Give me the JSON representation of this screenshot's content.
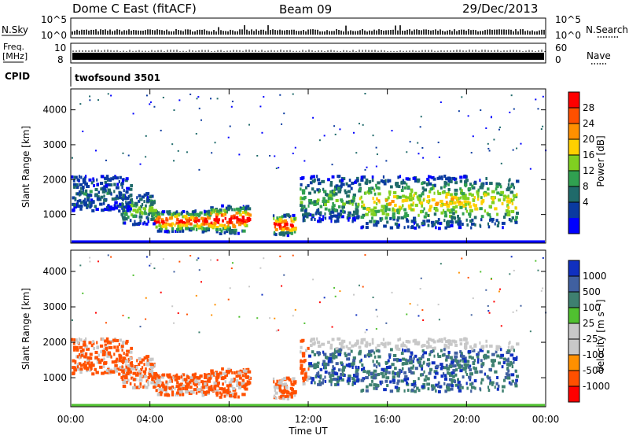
{
  "header": {
    "site": "Dome C East (fitACF)",
    "beam": "Beam 09",
    "date": "29/Dec/2013"
  },
  "strips": {
    "nsky_label": "N.Sky",
    "nsky_ticks": [
      "10^5",
      "10^0"
    ],
    "nsearch_label": "N.Search",
    "nsearch_ticks": [
      "10^5",
      "10^0"
    ],
    "freq_label_1": "Freq.",
    "freq_label_2": "[MHz]",
    "freq_ticks": [
      "10",
      "8"
    ],
    "nave_label": "Nave",
    "nave_ticks": [
      "60",
      "0"
    ],
    "cpid_label": "CPID",
    "cpid_value": "twofsound 3501"
  },
  "chart_data": [
    {
      "type": "heatmap",
      "ylabel": "Slant Range [km]",
      "yticks": [
        "4000",
        "3000",
        "2000",
        "1000"
      ],
      "yvalues": [
        4000,
        3000,
        2000,
        1000
      ],
      "ylim": [
        180,
        4600
      ],
      "xlim": [
        0,
        24
      ],
      "colorbar": {
        "label": "Power [dB]",
        "ticks": [
          "28",
          "24",
          "20",
          "16",
          "12",
          "8",
          "4"
        ],
        "colors": [
          "#ff0000",
          "#ff5000",
          "#ff9000",
          "#ffd000",
          "#80d020",
          "#30a050",
          "#1f6a6a",
          "#0a3aa0",
          "#0000ff"
        ]
      }
    },
    {
      "type": "heatmap",
      "ylabel": "Slant Range [km]",
      "yticks": [
        "4000",
        "3000",
        "2000",
        "1000"
      ],
      "yvalues": [
        4000,
        3000,
        2000,
        1000
      ],
      "ylim": [
        180,
        4600
      ],
      "xlim": [
        0,
        24
      ],
      "colorbar": {
        "label": "Velocity [m s⁻¹]",
        "ticks": [
          "1000",
          "500",
          "100",
          "25",
          "-25",
          "-100",
          "-500",
          "-1000"
        ],
        "colors": [
          "#1030c0",
          "#4060a0",
          "#3e8070",
          "#50c030",
          "#c8c8c8",
          "#c8c8c8",
          "#ff9000",
          "#ff5000",
          "#ff0000"
        ]
      },
      "xticks": [
        "00:00",
        "04:00",
        "08:00",
        "12:00",
        "16:00",
        "20:00",
        "00:00"
      ],
      "xvalues": [
        0,
        4,
        8,
        12,
        16,
        20,
        24
      ],
      "xlabel": "Time UT"
    }
  ]
}
